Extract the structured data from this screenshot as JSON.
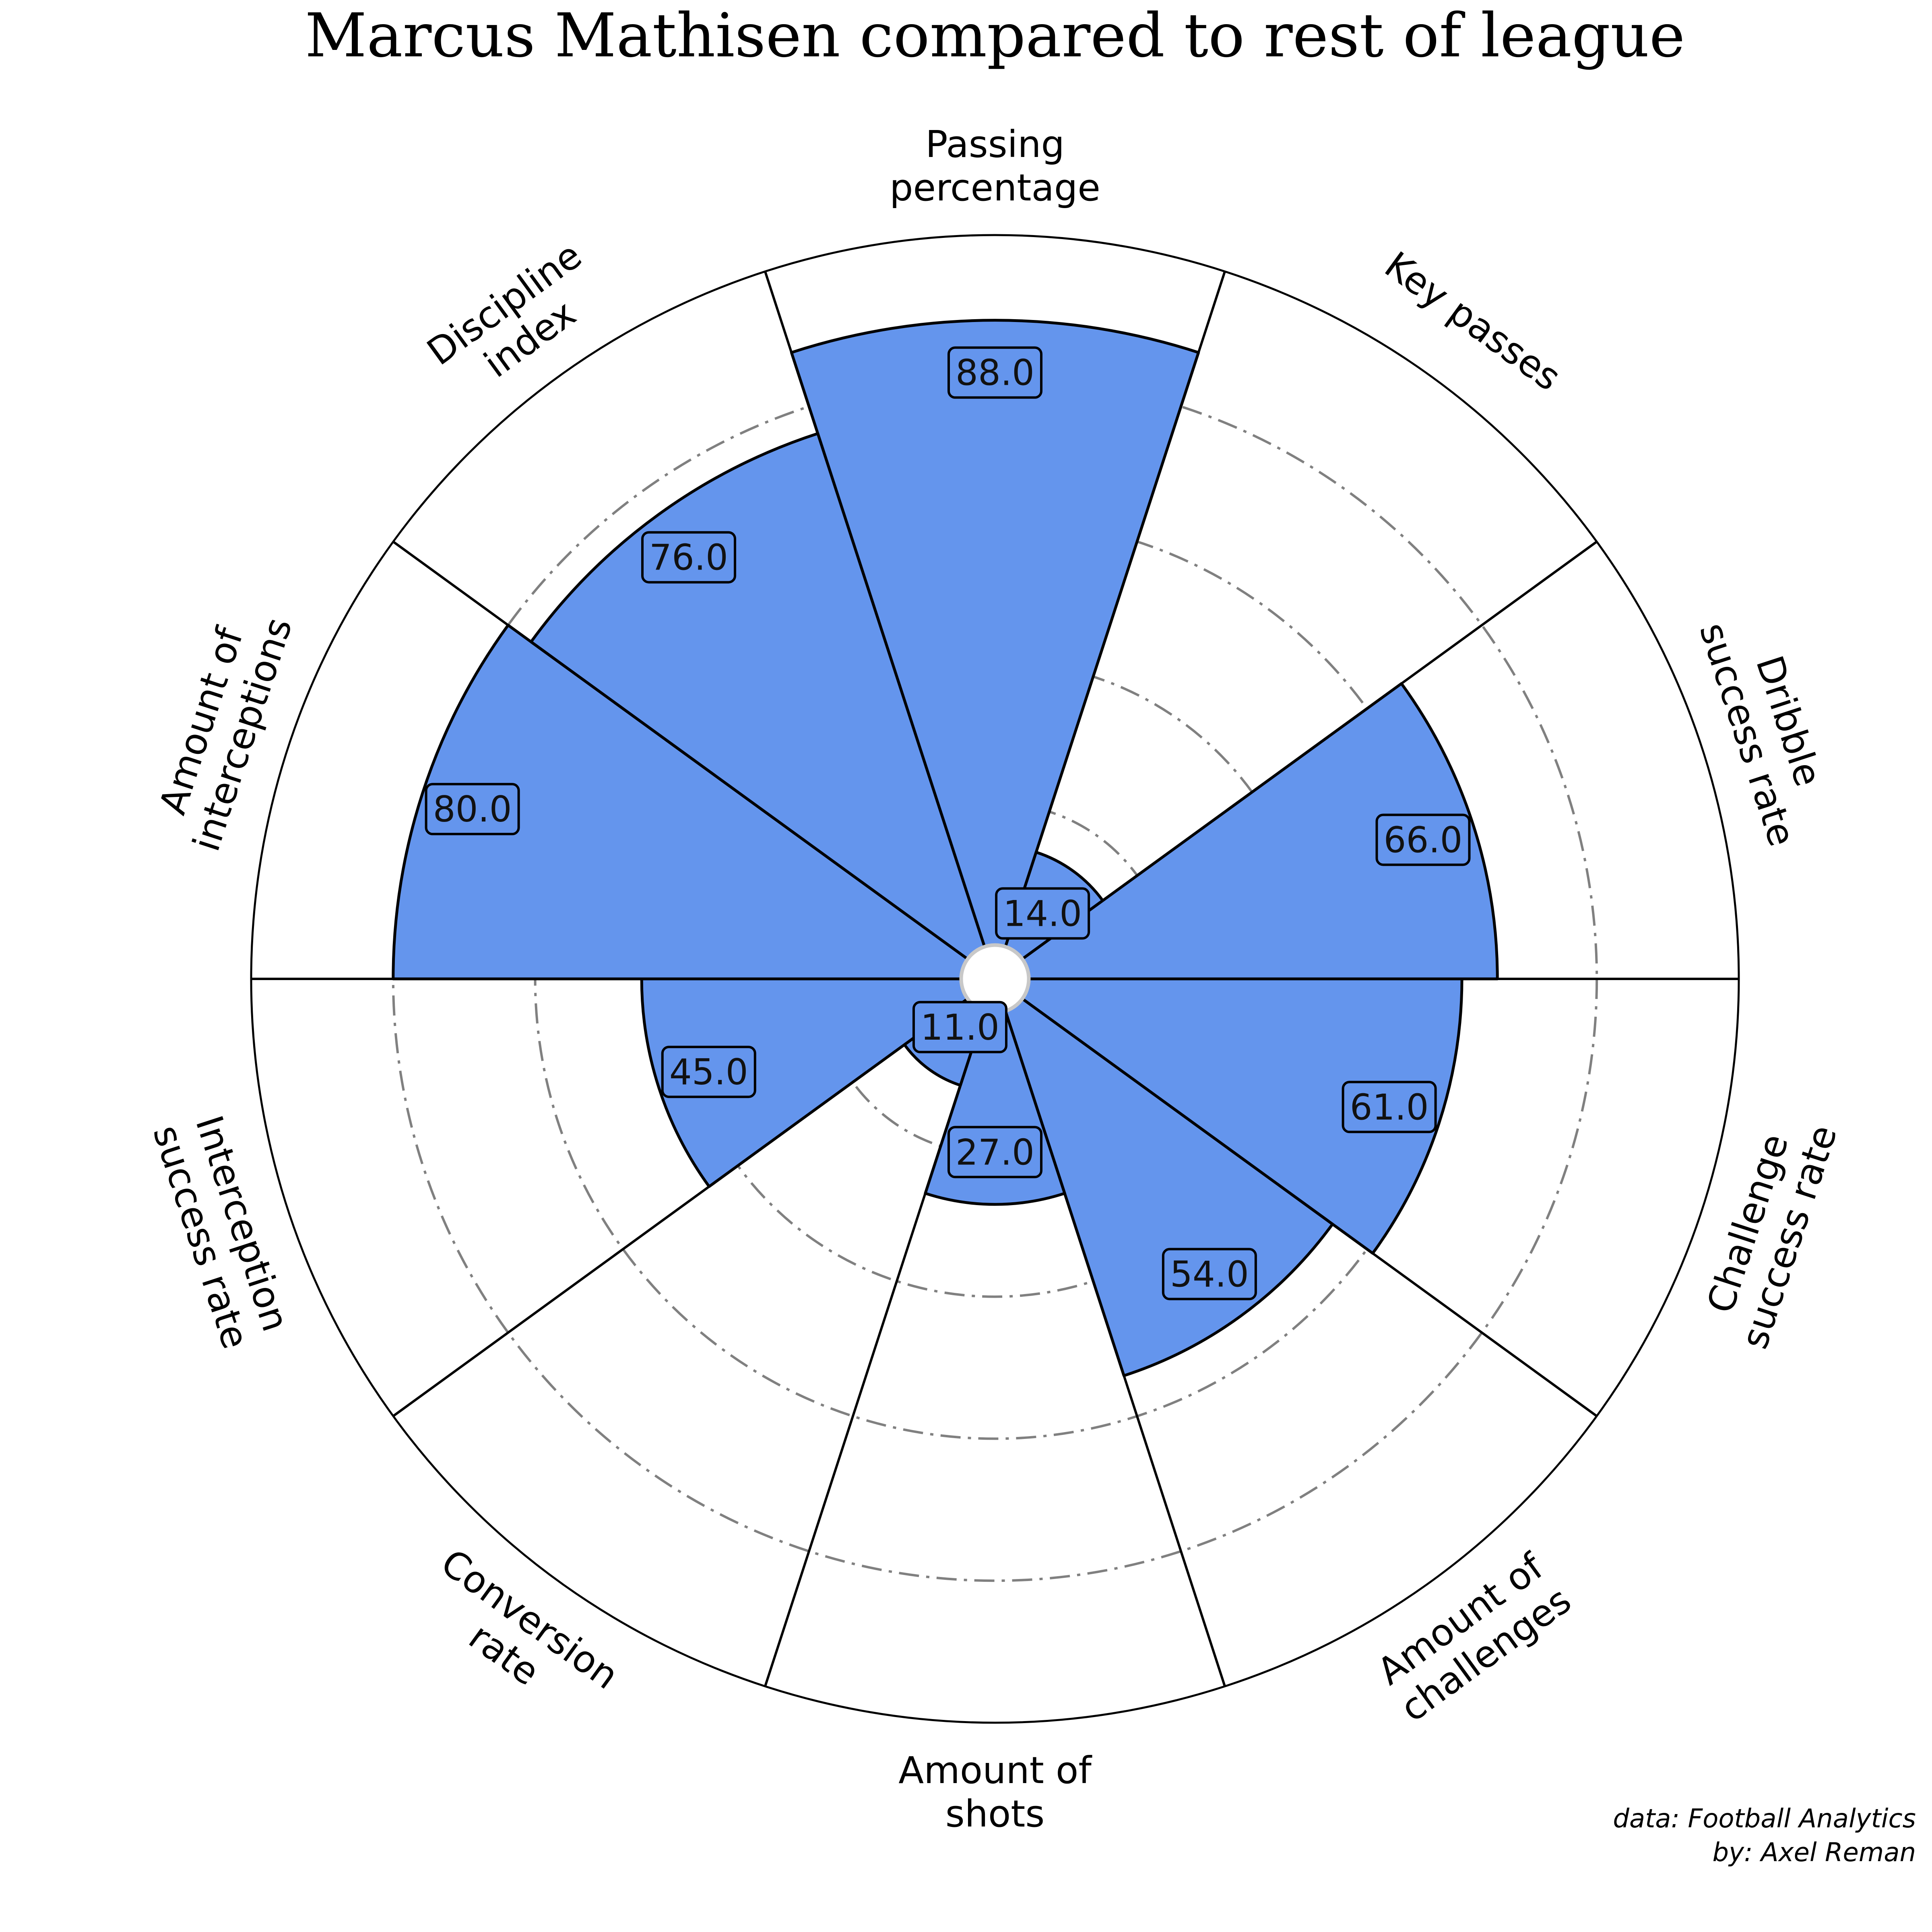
{
  "chart_data": {
    "type": "pie",
    "subtype": "polar-bar",
    "title": "Marcus Mathisen compared to rest of league",
    "categories": [
      [
        "Passing",
        "percentage"
      ],
      [
        "Key passes"
      ],
      [
        "Dribble",
        "success rate"
      ],
      [
        "Challenge",
        "success rate"
      ],
      [
        "Amount of",
        "challenges"
      ],
      [
        "Amount of",
        "shots"
      ],
      [
        "Conversion",
        "rate"
      ],
      [
        "Interception",
        "success rate"
      ],
      [
        "Amount of",
        "interceptions"
      ],
      [
        "Discipline",
        "index"
      ]
    ],
    "values": [
      88.0,
      14.0,
      66.0,
      61.0,
      54.0,
      27.0,
      11.0,
      45.0,
      80.0,
      76.0
    ],
    "value_labels": [
      "88.0",
      "14.0",
      "66.0",
      "61.0",
      "54.0",
      "27.0",
      "11.0",
      "45.0",
      "80.0",
      "76.0"
    ],
    "rlim": [
      0,
      100
    ],
    "gridlines": [
      20,
      40,
      60,
      80
    ],
    "grid": true,
    "bar_color": "#6495ED",
    "edge_color": "#000000",
    "grid_color": "#808080"
  },
  "credits": {
    "source": "data: Football Analytics",
    "author": "by: Axel Reman"
  }
}
